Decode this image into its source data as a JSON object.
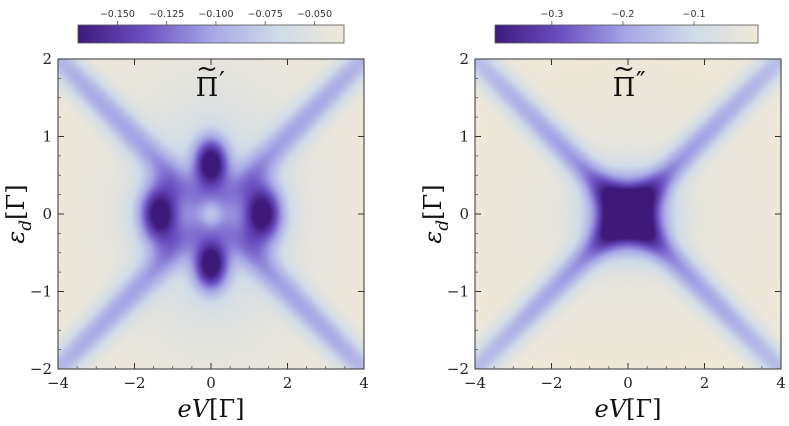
{
  "chart_data": [
    {
      "type": "heatmap",
      "title": "Π̃′",
      "title_base": "Π",
      "title_prime": "′",
      "xlabel": "eV[Γ]",
      "ylabel": "ε_d[Γ]",
      "xlim": [
        -4,
        4
      ],
      "ylim": [
        -2,
        2
      ],
      "xticks": [
        -4,
        -2,
        0,
        2,
        4
      ],
      "yticks": [
        -2,
        -1,
        0,
        1,
        2
      ],
      "xtick_labels": [
        "−4",
        "−2",
        "0",
        "2",
        "4"
      ],
      "ytick_labels": [
        "−2",
        "−1",
        "0",
        "1",
        "2"
      ],
      "colorbar": {
        "range": [
          -0.17,
          -0.035
        ],
        "ticks": [
          -0.15,
          -0.125,
          -0.1,
          -0.075,
          -0.05
        ],
        "tick_labels": [
          "−0.150",
          "−0.125",
          "−0.100",
          "−0.075",
          "−0.050"
        ]
      },
      "features": {
        "min_value": -0.17,
        "max_value": -0.035,
        "blob_centers": [
          [
            -1.4,
            0
          ],
          [
            1.4,
            0
          ],
          [
            0,
            0.65
          ],
          [
            0,
            -0.65
          ]
        ],
        "cross_lines": "eps_d = ±eV/2"
      }
    },
    {
      "type": "heatmap",
      "title": "Π̃″",
      "title_base": "Π",
      "title_prime": "″",
      "xlabel": "eV[Γ]",
      "ylabel": "ε_d[Γ]",
      "xlim": [
        -4,
        4
      ],
      "ylim": [
        -2,
        2
      ],
      "xticks": [
        -4,
        -2,
        0,
        2,
        4
      ],
      "yticks": [
        -2,
        -1,
        0,
        1,
        2
      ],
      "xtick_labels": [
        "−4",
        "−2",
        "0",
        "2",
        "4"
      ],
      "ytick_labels": [
        "−2",
        "−1",
        "0",
        "1",
        "2"
      ],
      "colorbar": {
        "range": [
          -0.38,
          -0.01
        ],
        "ticks": [
          -0.3,
          -0.2,
          -0.1
        ],
        "tick_labels": [
          "−0.3",
          "−0.2",
          "−0.1"
        ]
      },
      "features": {
        "min_value": -0.38,
        "max_value": -0.01,
        "blob_centers": [
          [
            0,
            0
          ]
        ],
        "cross_lines": "eps_d = ±eV/2"
      }
    }
  ],
  "colormap": [
    "#3d1a7a",
    "#6a4fc2",
    "#a7a6e6",
    "#cfdbe8",
    "#efe8d9"
  ]
}
